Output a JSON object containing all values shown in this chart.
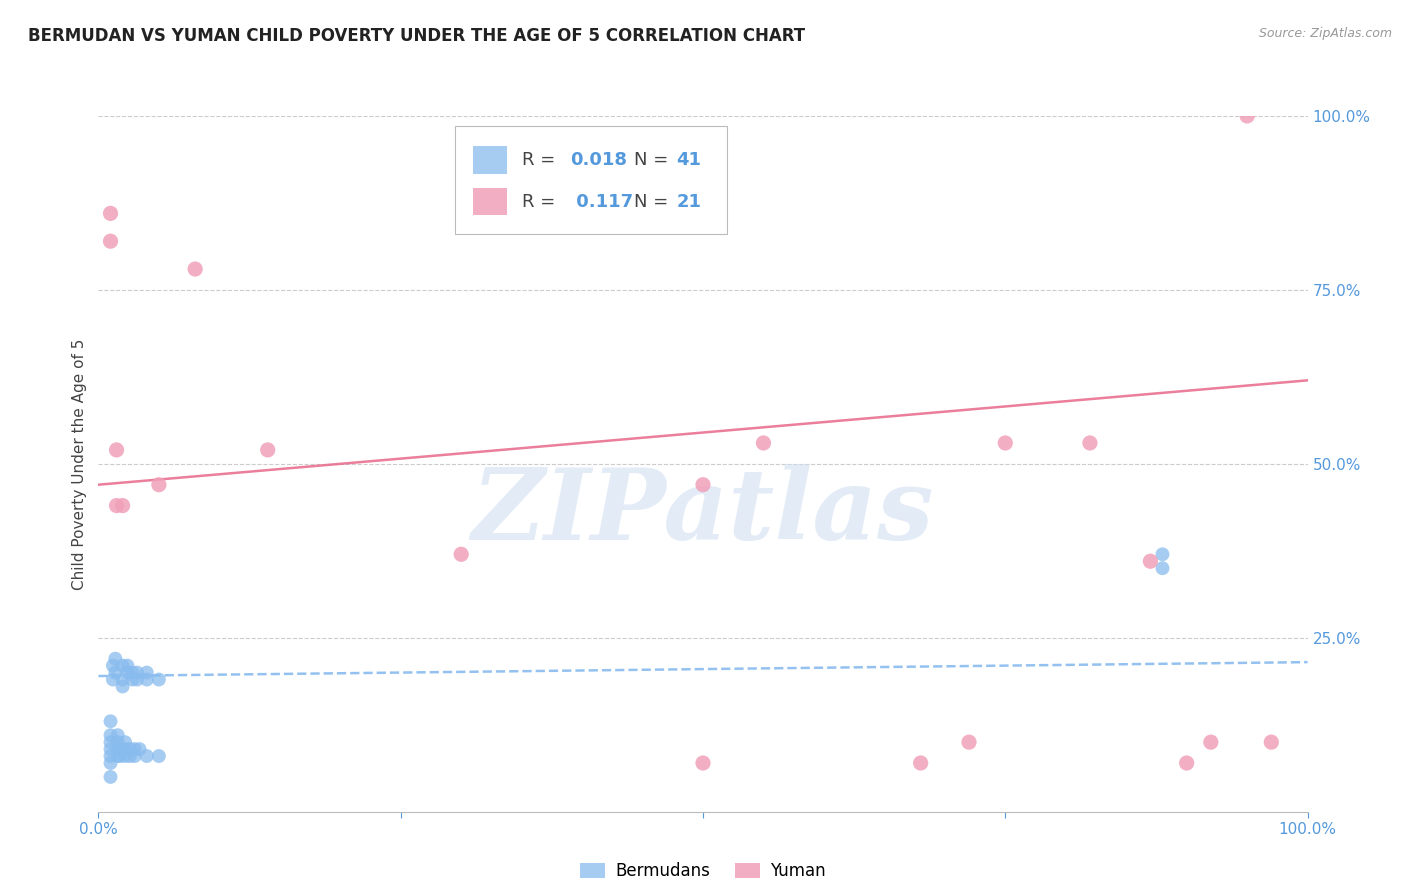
{
  "title": "BERMUDAN VS YUMAN CHILD POVERTY UNDER THE AGE OF 5 CORRELATION CHART",
  "source": "Source: ZipAtlas.com",
  "ylabel": "Child Poverty Under the Age of 5",
  "xlim": [
    0,
    1
  ],
  "ylim": [
    0,
    1
  ],
  "xticks": [
    0,
    0.25,
    0.5,
    0.75,
    1.0
  ],
  "yticks": [
    0,
    0.25,
    0.5,
    0.75,
    1.0
  ],
  "xtick_labels_show": [
    "0.0%",
    "100.0%"
  ],
  "ytick_labels_right": [
    "",
    "25.0%",
    "50.0%",
    "75.0%",
    "100.0%"
  ],
  "watermark": "ZIPatlas",
  "bermudans_color": "#88bbee",
  "yuman_color": "#f0a0b8",
  "bermudans_line_color": "#88bbee",
  "yuman_line_color": "#e87090",
  "legend_R_bermudans": "0.018",
  "legend_N_bermudans": "41",
  "legend_R_yuman": "0.117",
  "legend_N_yuman": "21",
  "bermudans_x": [
    0.01,
    0.01,
    0.01,
    0.01,
    0.01,
    0.01,
    0.01,
    0.012,
    0.012,
    0.014,
    0.014,
    0.016,
    0.016,
    0.016,
    0.016,
    0.018,
    0.018,
    0.02,
    0.02,
    0.02,
    0.022,
    0.022,
    0.022,
    0.024,
    0.024,
    0.026,
    0.026,
    0.028,
    0.028,
    0.03,
    0.03,
    0.032,
    0.032,
    0.034,
    0.04,
    0.04,
    0.04,
    0.05,
    0.05,
    0.88,
    0.88
  ],
  "bermudans_y": [
    0.05,
    0.07,
    0.08,
    0.09,
    0.1,
    0.11,
    0.13,
    0.19,
    0.21,
    0.2,
    0.22,
    0.08,
    0.09,
    0.1,
    0.11,
    0.08,
    0.09,
    0.18,
    0.19,
    0.21,
    0.08,
    0.09,
    0.1,
    0.2,
    0.21,
    0.08,
    0.09,
    0.19,
    0.2,
    0.08,
    0.09,
    0.19,
    0.2,
    0.09,
    0.08,
    0.19,
    0.2,
    0.08,
    0.19,
    0.35,
    0.37
  ],
  "yuman_x": [
    0.01,
    0.01,
    0.015,
    0.015,
    0.02,
    0.05,
    0.08,
    0.14,
    0.3,
    0.5,
    0.55,
    0.68,
    0.72,
    0.75,
    0.82,
    0.87,
    0.9,
    0.92,
    0.95,
    0.97,
    0.5
  ],
  "yuman_y": [
    0.86,
    0.82,
    0.52,
    0.44,
    0.44,
    0.47,
    0.78,
    0.52,
    0.37,
    0.47,
    0.53,
    0.07,
    0.1,
    0.53,
    0.53,
    0.36,
    0.07,
    0.1,
    1.0,
    0.1,
    0.07
  ],
  "bermudans_trend_x": [
    0,
    1
  ],
  "bermudans_trend_y": [
    0.195,
    0.215
  ],
  "yuman_trend_x": [
    0,
    1
  ],
  "yuman_trend_y": [
    0.47,
    0.62
  ],
  "background_color": "#ffffff",
  "grid_color": "#cccccc",
  "title_fontsize": 12,
  "axis_label_fontsize": 11,
  "tick_fontsize": 11,
  "source_fontsize": 9
}
